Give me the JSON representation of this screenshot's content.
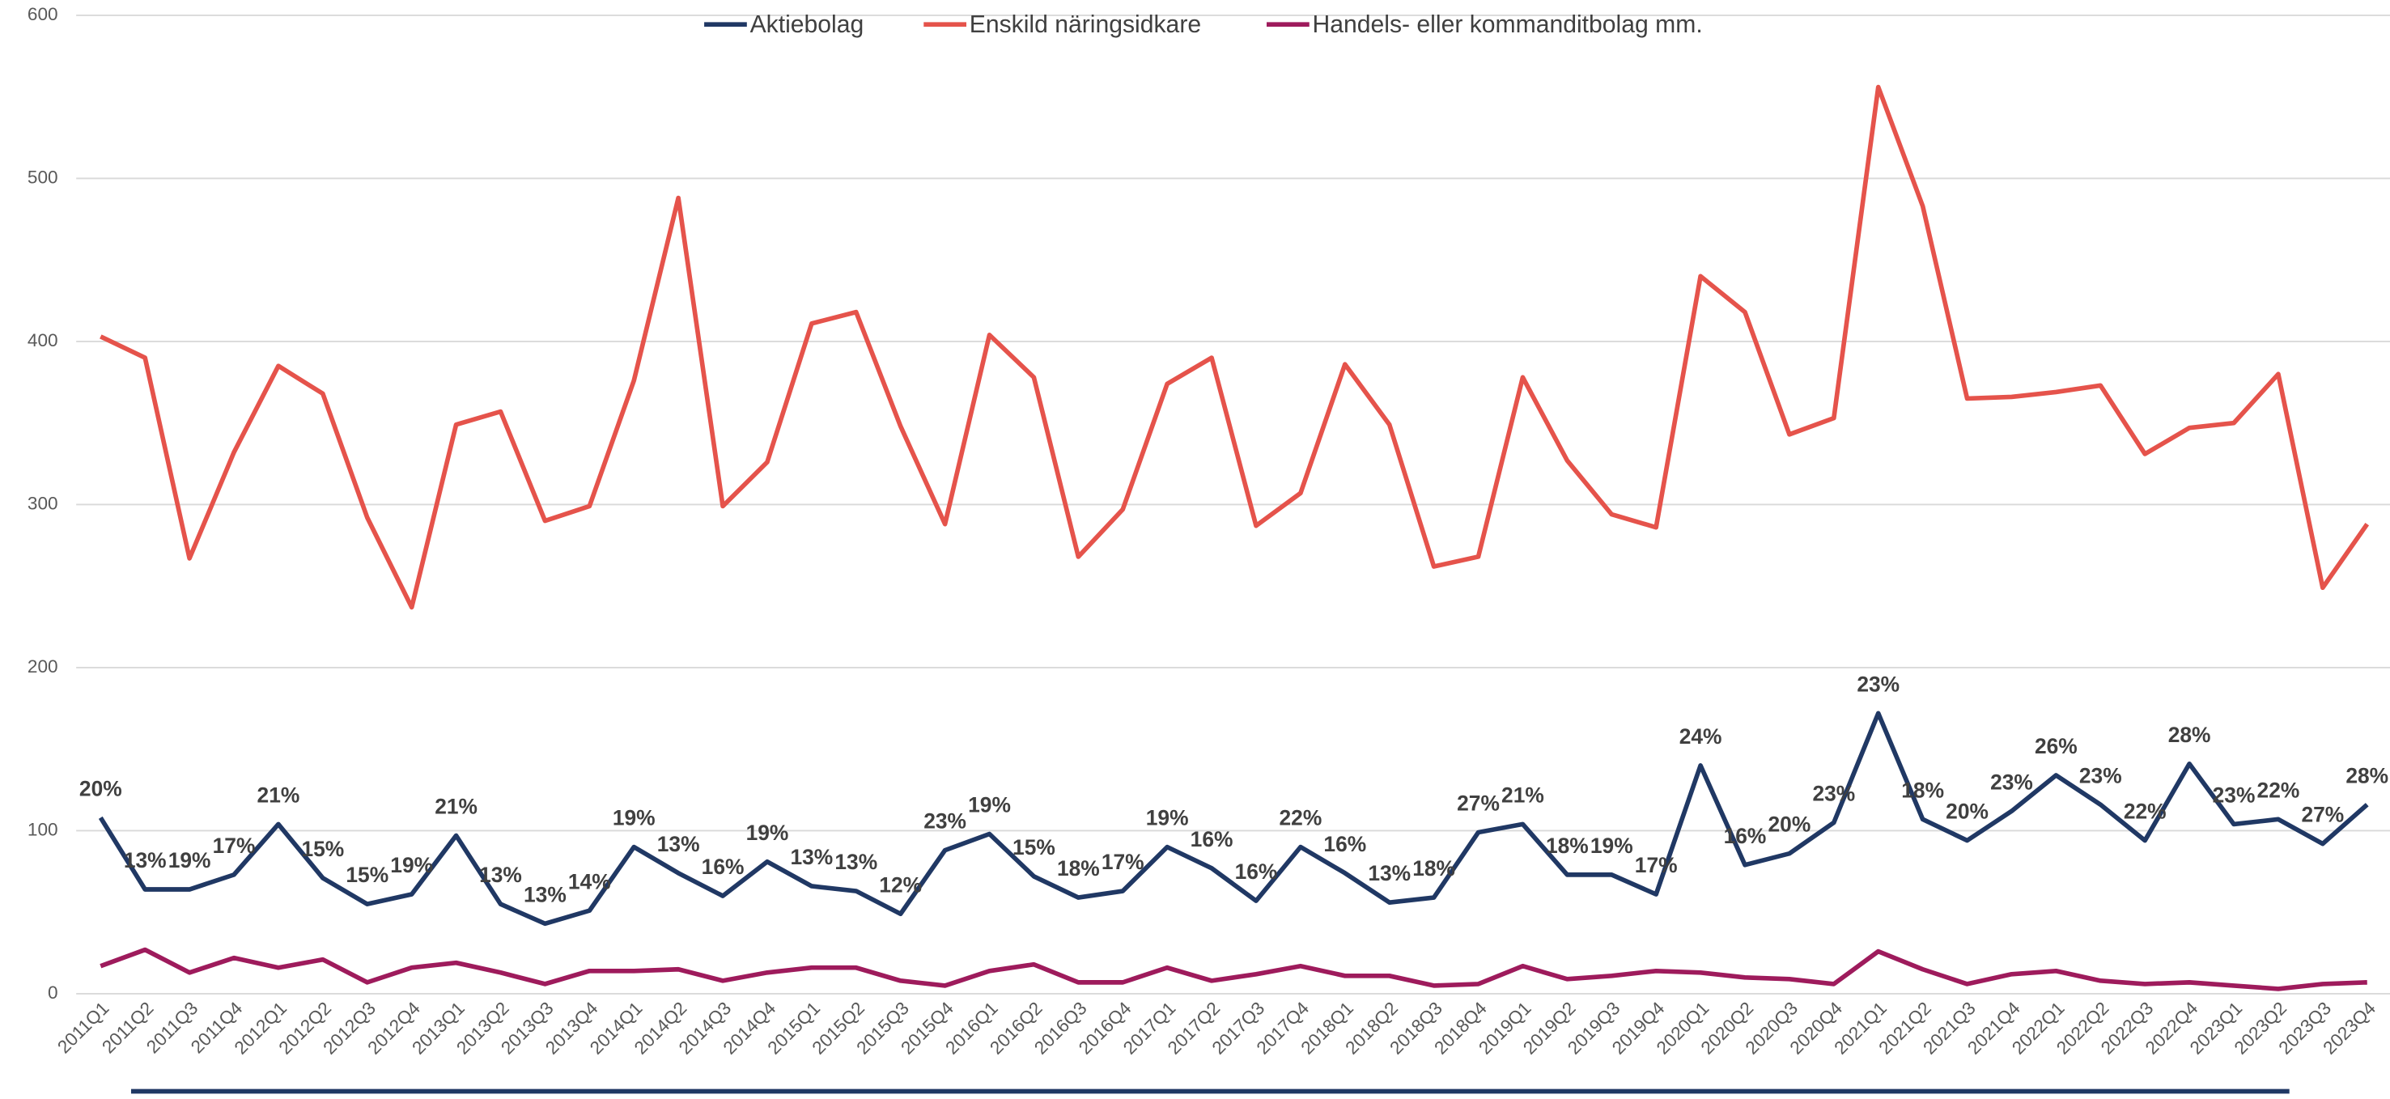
{
  "chart_data": {
    "type": "line",
    "categories": [
      "2011Q1",
      "2011Q2",
      "2011Q3",
      "2011Q4",
      "2012Q1",
      "2012Q2",
      "2012Q3",
      "2012Q4",
      "2013Q1",
      "2013Q2",
      "2013Q3",
      "2013Q4",
      "2014Q1",
      "2014Q2",
      "2014Q3",
      "2014Q4",
      "2015Q1",
      "2015Q2",
      "2015Q3",
      "2015Q4",
      "2016Q1",
      "2016Q2",
      "2016Q3",
      "2016Q4",
      "2017Q1",
      "2017Q2",
      "2017Q3",
      "2017Q4",
      "2018Q1",
      "2018Q2",
      "2018Q3",
      "2018Q4",
      "2019Q1",
      "2019Q2",
      "2019Q3",
      "2019Q4",
      "2020Q1",
      "2020Q2",
      "2020Q3",
      "2020Q4",
      "2021Q1",
      "2021Q2",
      "2021Q3",
      "2021Q4",
      "2022Q1",
      "2022Q2",
      "2022Q3",
      "2022Q4",
      "2023Q1",
      "2023Q2",
      "2023Q3",
      "2023Q4"
    ],
    "series": [
      {
        "name": "Aktiebolag",
        "color": "#203864",
        "values": [
          108,
          64,
          64,
          73,
          104,
          71,
          55,
          61,
          97,
          55,
          43,
          51,
          90,
          74,
          60,
          81,
          66,
          63,
          49,
          88,
          98,
          72,
          59,
          63,
          90,
          77,
          57,
          90,
          74,
          56,
          59,
          99,
          104,
          73,
          73,
          61,
          140,
          79,
          86,
          105,
          172,
          107,
          94,
          112,
          134,
          116,
          94,
          141,
          104,
          107,
          92,
          116
        ],
        "point_labels": [
          "20%",
          "13%",
          "19%",
          "17%",
          "21%",
          "15%",
          "15%",
          "19%",
          "21%",
          "13%",
          "13%",
          "14%",
          "19%",
          "13%",
          "16%",
          "19%",
          "13%",
          "13%",
          "12%",
          "23%",
          "19%",
          "15%",
          "18%",
          "17%",
          "19%",
          "16%",
          "16%",
          "22%",
          "16%",
          "13%",
          "18%",
          "27%",
          "21%",
          "18%",
          "19%",
          "17%",
          "24%",
          "16%",
          "20%",
          "23%",
          "23%",
          "18%",
          "20%",
          "23%",
          "26%",
          "23%",
          "22%",
          "28%",
          "23%",
          "22%",
          "27%",
          "28%"
        ]
      },
      {
        "name": "Enskild näringsidkare",
        "color": "#e5534b",
        "values": [
          403,
          390,
          267,
          332,
          385,
          368,
          292,
          237,
          349,
          357,
          290,
          299,
          376,
          488,
          299,
          326,
          411,
          418,
          348,
          288,
          404,
          378,
          268,
          297,
          374,
          390,
          287,
          307,
          386,
          349,
          262,
          268,
          378,
          327,
          294,
          286,
          440,
          418,
          343,
          353,
          556,
          483,
          365,
          366,
          369,
          373,
          331,
          347,
          350,
          380,
          249,
          288
        ]
      },
      {
        "name": "Handels- eller kommanditbolag mm.",
        "color": "#9e1b5c",
        "values": [
          17,
          27,
          13,
          22,
          16,
          21,
          7,
          16,
          19,
          13,
          6,
          14,
          14,
          15,
          8,
          13,
          16,
          16,
          8,
          5,
          14,
          18,
          7,
          7,
          16,
          8,
          12,
          17,
          11,
          11,
          5,
          6,
          17,
          9,
          11,
          14,
          13,
          10,
          9,
          6,
          26,
          15,
          6,
          12,
          14,
          8,
          6,
          7,
          5,
          3,
          6,
          7
        ]
      }
    ],
    "ylim": [
      0,
      600
    ],
    "yticks": [
      0,
      100,
      200,
      300,
      400,
      500,
      600
    ],
    "grid": true,
    "legend": "top"
  }
}
